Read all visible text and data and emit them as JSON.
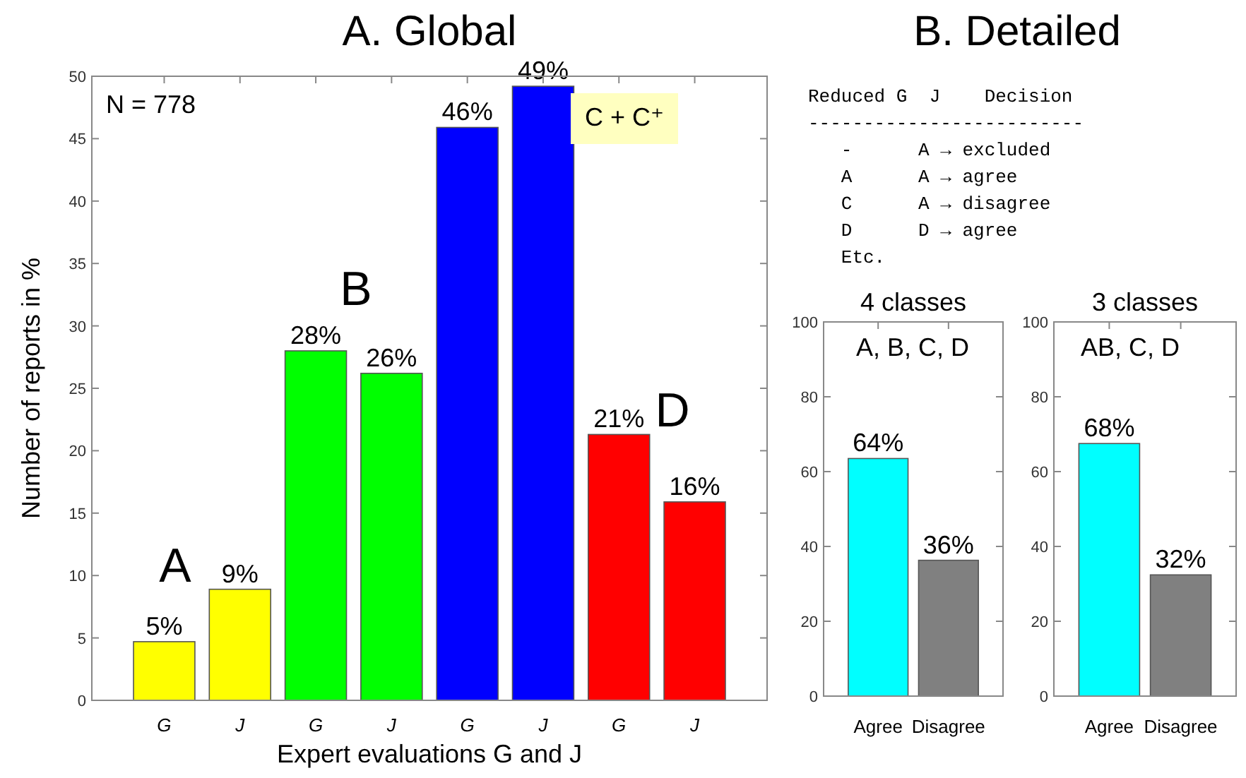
{
  "chart_data": [
    {
      "type": "bar",
      "title": "A. Global",
      "xlabel": "Expert evaluations G and J",
      "ylabel": "Number of reports in %",
      "categories": [
        "G",
        "J",
        "G",
        "J",
        "G",
        "J",
        "G",
        "J"
      ],
      "values": [
        4.7,
        8.9,
        28,
        26.2,
        45.9,
        49.2,
        21.3,
        15.9
      ],
      "colors": [
        "#ffff00",
        "#ffff00",
        "#00ff00",
        "#00ff00",
        "#0000ff",
        "#0000ff",
        "#ff0000",
        "#ff0000"
      ],
      "value_labels": [
        "5%",
        "9%",
        "28%",
        "26%",
        "46%",
        "49%",
        "21%",
        "16%"
      ],
      "ylim": [
        0,
        50
      ],
      "yticks": [
        0,
        5,
        10,
        15,
        20,
        25,
        30,
        35,
        40,
        45,
        50
      ],
      "grid": false,
      "annotations": [
        "N = 778",
        "A",
        "B",
        "C + C⁺",
        "D"
      ]
    },
    {
      "type": "other",
      "title": "B. Detailed",
      "annotations": [
        "Reduced G  J    Decision",
        "-------------------------",
        "   -      A → excluded",
        "   A      A → agree",
        "   C      A → disagree",
        "   D      D → agree",
        "   Etc."
      ]
    },
    {
      "type": "bar",
      "title": "4 classes",
      "categories": [
        "Agree",
        "Disagree"
      ],
      "values": [
        63.5,
        36.3
      ],
      "colors": [
        "#00ffff",
        "#808080"
      ],
      "value_labels": [
        "64%",
        "36%"
      ],
      "ylim": [
        0,
        100
      ],
      "yticks": [
        0,
        20,
        40,
        60,
        80,
        100
      ],
      "grid": false,
      "annotations": [
        "A, B, C, D"
      ]
    },
    {
      "type": "bar",
      "title": "3 classes",
      "categories": [
        "Agree",
        "Disagree"
      ],
      "values": [
        67.5,
        32.4
      ],
      "colors": [
        "#00ffff",
        "#808080"
      ],
      "value_labels": [
        "68%",
        "32%"
      ],
      "ylim": [
        0,
        100
      ],
      "yticks": [
        0,
        20,
        40,
        60,
        80,
        100
      ],
      "grid": false,
      "annotations": [
        "AB, C, D"
      ]
    }
  ]
}
